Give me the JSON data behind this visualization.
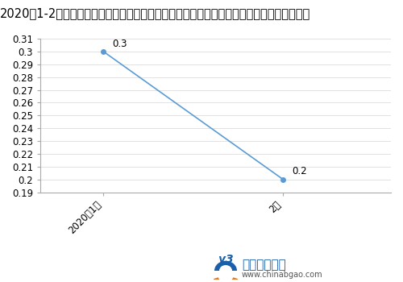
{
  "title": "2020年1-2月泵、阀门、压缩机及类似机械制造工业生产者出厂价格指数同比涨跌幅统计分析",
  "x_labels": [
    "2020年1月",
    "2月"
  ],
  "y_values": [
    0.3,
    0.2
  ],
  "ylim": [
    0.19,
    0.31
  ],
  "yticks": [
    0.19,
    0.2,
    0.21,
    0.22,
    0.23,
    0.24,
    0.25,
    0.26,
    0.27,
    0.28,
    0.29,
    0.3,
    0.31
  ],
  "ytick_labels": [
    "0.19",
    "0.2",
    "0.21",
    "0.22",
    "0.23",
    "0.24",
    "0.25",
    "0.26",
    "0.27",
    "0.28",
    "0.29",
    "0.3",
    "0.31"
  ],
  "line_color": "#5B9BD5",
  "marker_color": "#5B9BD5",
  "marker_size": 4,
  "line_width": 1.2,
  "title_fontsize": 10.5,
  "tick_fontsize": 8.5,
  "annotation_fontsize": 8.5,
  "bg_color": "#FFFFFF",
  "border_color": "#AAAAAA",
  "grid_color": "#DDDDDD"
}
